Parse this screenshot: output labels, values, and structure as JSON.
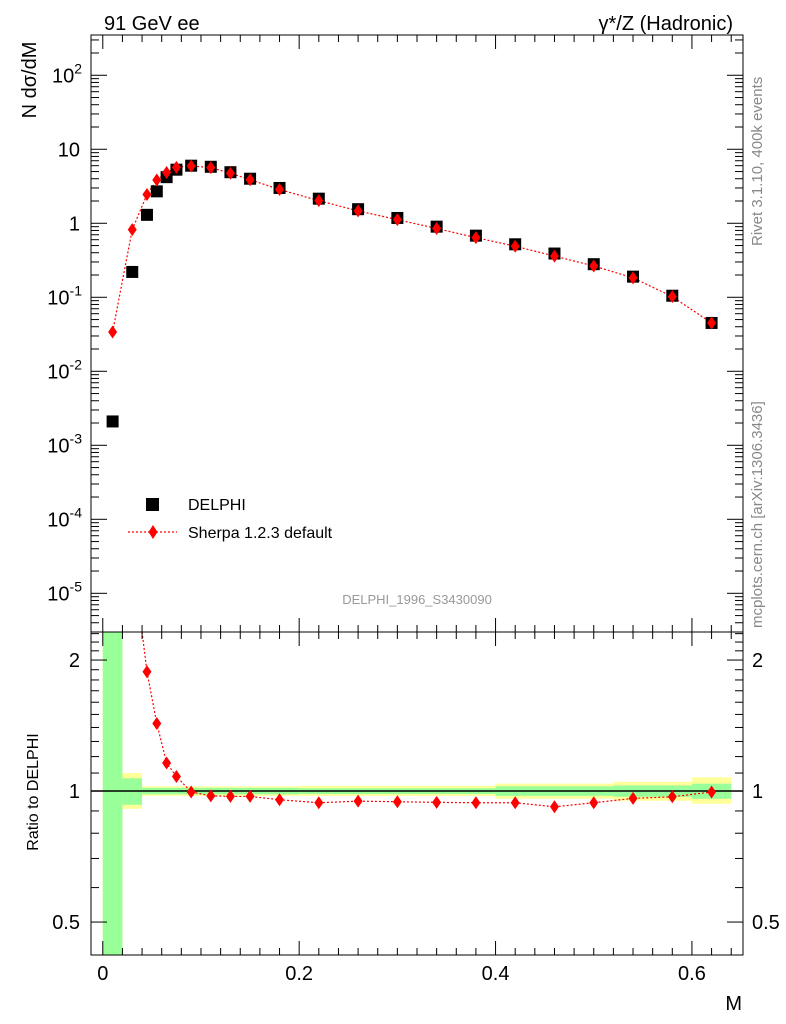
{
  "header": {
    "left_label": "91 GeV ee",
    "right_label": "γ*/Z (Hadronic)"
  },
  "side_labels": {
    "rivet": "Rivet 3.1.10,  400k events",
    "mcplots": "mcplots.cern.ch [arXiv:1306.3436]"
  },
  "colors": {
    "data": "#000000",
    "mc": "#ff0000",
    "band_inner": "#99ff99",
    "band_outer": "#ffff99",
    "watermark": "#999999"
  },
  "chart_data": [
    {
      "type": "scatter",
      "panel": "main",
      "ylabel": "N dσ/dM",
      "yscale": "log",
      "ylim": [
        3e-06,
        350
      ],
      "xlim": [
        -0.012,
        0.652
      ],
      "y_ticks": [
        "10^-5",
        "10^-4",
        "10^-3",
        "10^-2",
        "10^-1",
        "1",
        "10",
        "10^2"
      ],
      "watermark": "DELPHI_1996_S3430090",
      "legend": {
        "placement": "bottom-left",
        "entries": [
          "DELPHI",
          "Sherpa 1.2.3 default"
        ]
      },
      "series": [
        {
          "name": "DELPHI",
          "marker": "square",
          "x": [
            0.01,
            0.03,
            0.045,
            0.055,
            0.065,
            0.075,
            0.09,
            0.11,
            0.13,
            0.15,
            0.18,
            0.22,
            0.26,
            0.3,
            0.34,
            0.38,
            0.42,
            0.46,
            0.5,
            0.54,
            0.58,
            0.62
          ],
          "y": [
            0.0021,
            0.22,
            1.3,
            2.7,
            4.2,
            5.3,
            6.0,
            5.8,
            4.9,
            4.0,
            3.0,
            2.15,
            1.55,
            1.18,
            0.9,
            0.68,
            0.52,
            0.39,
            0.28,
            0.19,
            0.105,
            0.045
          ]
        },
        {
          "name": "Sherpa 1.2.3 default",
          "marker": "diamond",
          "line": "dotted",
          "x": [
            0.01,
            0.03,
            0.045,
            0.055,
            0.065,
            0.075,
            0.09,
            0.11,
            0.13,
            0.15,
            0.18,
            0.22,
            0.26,
            0.3,
            0.34,
            0.38,
            0.42,
            0.46,
            0.5,
            0.54,
            0.58,
            0.62
          ],
          "y": [
            0.034,
            0.82,
            2.45,
            3.85,
            4.85,
            5.7,
            5.95,
            5.65,
            4.75,
            3.88,
            2.86,
            2.02,
            1.47,
            1.12,
            0.85,
            0.64,
            0.49,
            0.36,
            0.265,
            0.183,
            0.102,
            0.045
          ]
        }
      ]
    },
    {
      "type": "scatter",
      "panel": "ratio",
      "ylabel": "Ratio to DELPHI",
      "xlabel": "M",
      "yscale": "log",
      "ylim": [
        0.42,
        2.32
      ],
      "y_ticks": [
        "0.5",
        "1",
        "2"
      ],
      "x_ticks": [
        "0",
        "0.2",
        "0.4",
        "0.6"
      ],
      "series": [
        {
          "name": "Sherpa 1.2.3 default",
          "marker": "diamond",
          "line": "dotted",
          "x": [
            0.045,
            0.055,
            0.065,
            0.075,
            0.09,
            0.11,
            0.13,
            0.15,
            0.18,
            0.22,
            0.26,
            0.3,
            0.34,
            0.38,
            0.42,
            0.46,
            0.5,
            0.54,
            0.58,
            0.62
          ],
          "y": [
            1.88,
            1.43,
            1.16,
            1.08,
            0.995,
            0.975,
            0.972,
            0.972,
            0.955,
            0.94,
            0.948,
            0.945,
            0.942,
            0.94,
            0.94,
            0.92,
            0.94,
            0.962,
            0.97,
            0.995
          ]
        }
      ],
      "mc_extends_above_at_x": 0.04,
      "bands": [
        {
          "x0": 0.0,
          "x1": 0.02,
          "inner": [
            0.42,
            2.32
          ],
          "outer": [
            0.42,
            2.32
          ]
        },
        {
          "x0": 0.02,
          "x1": 0.04,
          "inner": [
            0.93,
            1.07
          ],
          "outer": [
            0.91,
            1.1
          ]
        },
        {
          "x0": 0.04,
          "x1": 0.2,
          "inner": [
            0.983,
            1.017
          ],
          "outer": [
            0.975,
            1.025
          ]
        },
        {
          "x0": 0.2,
          "x1": 0.4,
          "inner": [
            0.985,
            1.015
          ],
          "outer": [
            0.975,
            1.028
          ]
        },
        {
          "x0": 0.4,
          "x1": 0.52,
          "inner": [
            0.975,
            1.025
          ],
          "outer": [
            0.96,
            1.04
          ]
        },
        {
          "x0": 0.52,
          "x1": 0.6,
          "inner": [
            0.97,
            1.03
          ],
          "outer": [
            0.95,
            1.05
          ]
        },
        {
          "x0": 0.6,
          "x1": 0.64,
          "inner": [
            0.96,
            1.04
          ],
          "outer": [
            0.935,
            1.075
          ]
        }
      ]
    }
  ]
}
